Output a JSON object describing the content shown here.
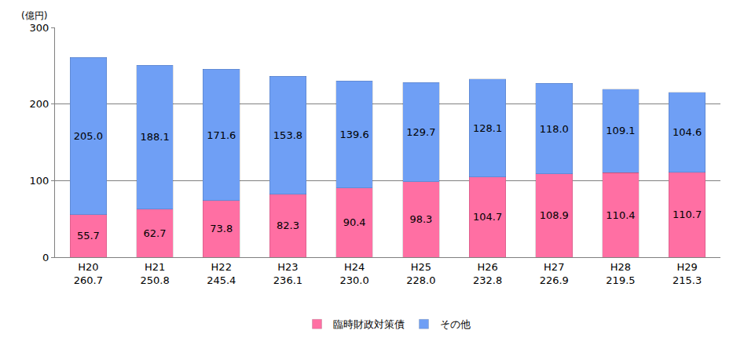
{
  "chart_data": {
    "type": "bar",
    "ylabel": "(億円)",
    "categories": [
      "H20",
      "H21",
      "H22",
      "H23",
      "H24",
      "H25",
      "H26",
      "H27",
      "H28",
      "H29"
    ],
    "totals": [
      260.7,
      250.8,
      245.4,
      236.1,
      230.0,
      228.0,
      232.8,
      226.9,
      219.5,
      215.3
    ],
    "totals_labels": [
      "260.7",
      "250.8",
      "245.4",
      "236.1",
      "230.0",
      "228.0",
      "232.8",
      "226.9",
      "219.5",
      "215.3"
    ],
    "series": [
      {
        "name": "臨時財政対策債",
        "color": "#ff6fa3",
        "values": [
          55.7,
          62.7,
          73.8,
          82.3,
          90.4,
          98.3,
          104.7,
          108.9,
          110.4,
          110.7
        ],
        "value_labels": [
          "55.7",
          "62.7",
          "73.8",
          "82.3",
          "90.4",
          "98.3",
          "104.7",
          "108.9",
          "110.4",
          "110.7"
        ]
      },
      {
        "name": "その他",
        "color": "#6f9ff5",
        "values": [
          205.0,
          188.1,
          171.6,
          153.8,
          139.6,
          129.7,
          128.1,
          118.0,
          109.1,
          104.6
        ],
        "value_labels": [
          "205.0",
          "188.1",
          "171.6",
          "153.8",
          "139.6",
          "129.7",
          "128.1",
          "118.0",
          "109.1",
          "104.6"
        ]
      }
    ],
    "ylim": [
      0,
      300
    ],
    "yticks": [
      0,
      100,
      200,
      300
    ],
    "grid": true,
    "stacked": true,
    "data_labels": true,
    "legend": "bottom"
  }
}
